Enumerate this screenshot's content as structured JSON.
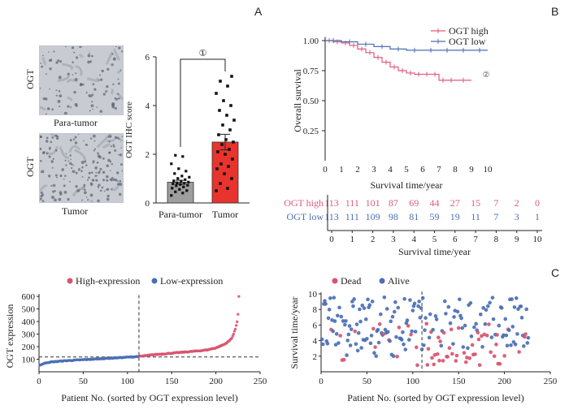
{
  "panels": {
    "A": {
      "letter": "A",
      "image_row_label": "OGT",
      "image_top_caption": "Para-tumor",
      "image_bottom_caption": "Tumor",
      "significance_mark": "①"
    },
    "B": {
      "letter": "B",
      "curve_mark": "②"
    },
    "C": {
      "letter": "C"
    }
  },
  "chart_data": [
    {
      "type": "bar",
      "ylabel": "OGT IHC score",
      "categories": [
        "Para-tumor",
        "Tumor"
      ],
      "values": [
        0.85,
        2.5
      ],
      "errors": [
        0.08,
        0.32
      ],
      "ylim": [
        0,
        6
      ],
      "yticks": [
        0,
        2,
        4,
        6
      ],
      "colors": [
        "#9e9e9e",
        "#e8342d"
      ],
      "points": [
        [
          0.3,
          0.4,
          0.45,
          0.5,
          0.55,
          0.6,
          0.65,
          0.7,
          0.72,
          0.75,
          0.78,
          0.8,
          0.82,
          0.85,
          0.88,
          0.9,
          0.95,
          1.0,
          1.05,
          1.1,
          1.2,
          1.3,
          1.4,
          1.6,
          1.9,
          1.95
        ],
        [
          0.5,
          0.6,
          0.8,
          1.0,
          1.2,
          1.4,
          1.5,
          1.6,
          1.8,
          2.0,
          2.1,
          2.2,
          2.4,
          2.5,
          2.6,
          2.8,
          3.0,
          3.2,
          3.4,
          3.6,
          3.8,
          4.0,
          4.2,
          4.5,
          4.8,
          5.0,
          5.2
        ]
      ]
    },
    {
      "type": "line",
      "ylabel": "Overall survival",
      "xlabel": "Survival time/year",
      "xlim": [
        0,
        10
      ],
      "ylim": [
        0,
        1
      ],
      "xticks": [
        0,
        1,
        2,
        3,
        4,
        5,
        6,
        7,
        8,
        9,
        10
      ],
      "yticks": [
        "0.25",
        "0.50",
        "0.75",
        "1.00"
      ],
      "series": [
        {
          "name": "OGT high",
          "color": "#e05a7a",
          "x": [
            0,
            0.5,
            1.0,
            1.5,
            2.0,
            2.5,
            3.0,
            3.5,
            4.0,
            4.5,
            5.0,
            5.5,
            6.0,
            6.5,
            7.0,
            7.5,
            8.0,
            9.0
          ],
          "y": [
            1.0,
            0.99,
            0.98,
            0.96,
            0.93,
            0.9,
            0.86,
            0.82,
            0.78,
            0.75,
            0.73,
            0.72,
            0.72,
            0.72,
            0.67,
            0.67,
            0.67,
            0.67
          ]
        },
        {
          "name": "OGT low",
          "color": "#4a6fb5",
          "x": [
            0,
            1.0,
            2.0,
            3.0,
            4.0,
            5.0,
            6.0,
            7.0,
            8.0,
            9.0,
            10.0
          ],
          "y": [
            1.0,
            0.99,
            0.97,
            0.95,
            0.93,
            0.92,
            0.92,
            0.92,
            0.92,
            0.92,
            0.92
          ]
        }
      ],
      "legend": "top-right"
    },
    {
      "type": "table",
      "xlabel": "Survival time/year",
      "xticks": [
        0,
        1,
        2,
        3,
        4,
        5,
        6,
        7,
        8,
        9,
        10
      ],
      "rows": [
        {
          "name": "OGT high",
          "color": "#e05a7a",
          "values": [
            113,
            111,
            101,
            87,
            69,
            44,
            27,
            15,
            7,
            2,
            0
          ]
        },
        {
          "name": "OGT low",
          "color": "#4a6fb5",
          "values": [
            113,
            111,
            109,
            98,
            81,
            59,
            19,
            11,
            7,
            3,
            1
          ]
        }
      ]
    },
    {
      "type": "scatter",
      "title": "",
      "xlabel": "Patient  No. (sorted by OGT expression level)",
      "ylabel": "OGT expression",
      "xlim": [
        0,
        250
      ],
      "ylim": [
        0,
        620
      ],
      "xticks": [
        0,
        50,
        100,
        150,
        200,
        250
      ],
      "yticks": [
        100,
        200,
        300,
        400,
        500,
        600
      ],
      "cutoff_x": 113,
      "cutoff_y": 118,
      "legend": [
        {
          "name": "High-expression",
          "color": "#d9546f"
        },
        {
          "name": "Low-expression",
          "color": "#4a6fb5"
        }
      ],
      "curve": {
        "x": [
          0,
          5,
          10,
          20,
          30,
          40,
          50,
          60,
          70,
          80,
          90,
          100,
          113,
          120,
          130,
          140,
          150,
          160,
          170,
          180,
          190,
          200,
          205,
          210,
          215,
          218,
          220,
          222,
          224,
          225,
          226
        ],
        "y": [
          50,
          65,
          75,
          82,
          88,
          92,
          96,
          100,
          104,
          108,
          112,
          116,
          122,
          128,
          136,
          142,
          148,
          154,
          160,
          166,
          174,
          190,
          205,
          220,
          245,
          270,
          300,
          340,
          400,
          460,
          600
        ]
      }
    },
    {
      "type": "scatter",
      "xlabel": "Patient  No. (sorted by OGT expression level)",
      "ylabel": "Survival time/year",
      "xlim": [
        0,
        250
      ],
      "ylim": [
        0,
        10
      ],
      "xticks": [
        0,
        50,
        100,
        150,
        200,
        250
      ],
      "yticks": [
        2,
        4,
        6,
        8,
        10
      ],
      "cutoff_x": 110,
      "legend": [
        {
          "name": "Dead",
          "color": "#d9546f"
        },
        {
          "name": "Alive",
          "color": "#4a6fb5"
        }
      ]
    }
  ]
}
